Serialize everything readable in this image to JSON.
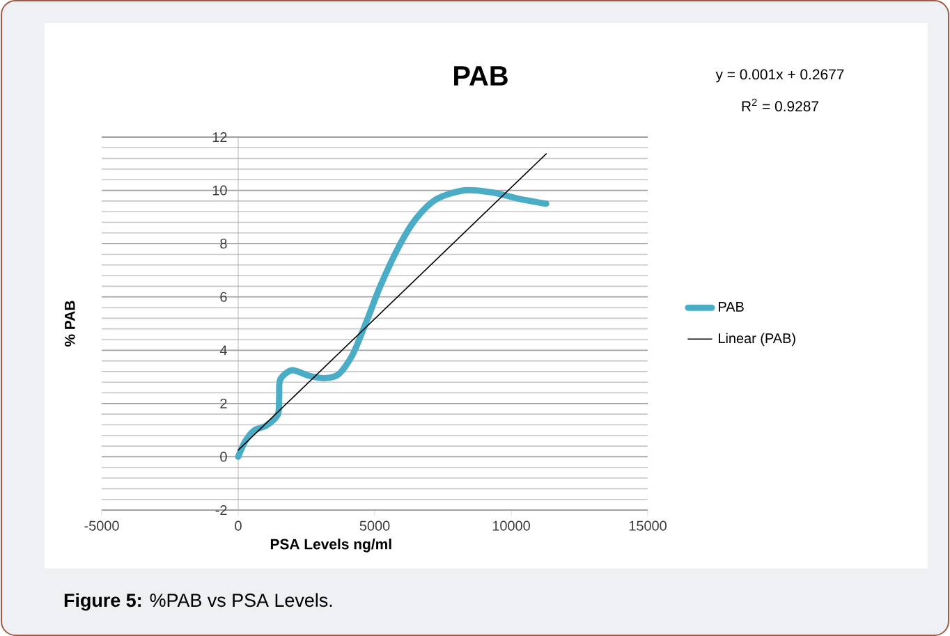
{
  "chart_data": {
    "type": "line",
    "title": "PAB",
    "xlabel": "PSA Levels ng/ml",
    "ylabel": "% PAB",
    "annotations": [
      "y = 0.001x + 0.2677",
      "R$^{2}$ = 0.9287",
      "**Figure 5:** %PAB vs PSA Levels."
    ],
    "xlim": [
      -5000,
      15000
    ],
    "ylim": [
      -2,
      12
    ],
    "xticks": [
      -5000,
      0,
      5000,
      10000,
      15000
    ],
    "yticks": [
      -2,
      0,
      2,
      4,
      6,
      8,
      10,
      12
    ],
    "grid": "y",
    "legend": "right",
    "series": [
      {
        "name": "PAB",
        "color": "#4bacc6",
        "x": [
          0,
          256,
          600,
          1030,
          1450,
          1500,
          1540,
          1970,
          2560,
          3160,
          3680,
          4190,
          4700,
          5210,
          5900,
          6500,
          7260,
          8290,
          9320,
          10340,
          11280
        ],
        "values": [
          0,
          0.58,
          1.0,
          1.17,
          1.58,
          2.25,
          2.9,
          3.25,
          3.05,
          2.95,
          3.1,
          3.83,
          5.08,
          6.42,
          7.92,
          8.92,
          9.67,
          10.0,
          9.92,
          9.67,
          9.5
        ]
      },
      {
        "name": "Linear (PAB)",
        "color": "#000000",
        "x": [
          0,
          11280
        ],
        "values": [
          0.25,
          11.37
        ]
      }
    ]
  }
}
